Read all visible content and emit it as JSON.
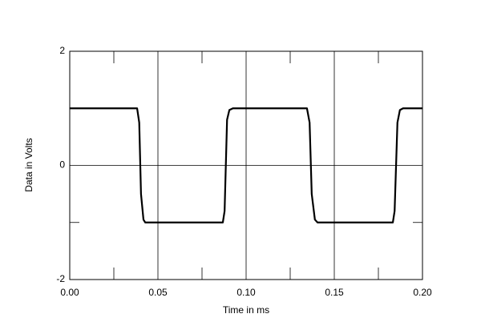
{
  "chart_data": {
    "type": "line",
    "x_label": "Time in ms",
    "y_label": "Data in Volts",
    "x": [
      0,
      0.0382,
      0.0394,
      0.0404,
      0.0418,
      0.0428,
      0.0868,
      0.0878,
      0.0892,
      0.0905,
      0.0925,
      0.1345,
      0.136,
      0.1372,
      0.139,
      0.1405,
      0.1832,
      0.1842,
      0.1858,
      0.1872,
      0.189,
      0.2
    ],
    "series": [
      {
        "color": "#000000",
        "values": [
          1,
          1,
          0.75,
          -0.5,
          -0.95,
          -1,
          -1,
          -0.8,
          0.8,
          0.97,
          1,
          1,
          0.75,
          -0.5,
          -0.95,
          -1,
          -1,
          -0.8,
          0.75,
          0.97,
          1,
          1
        ]
      }
    ],
    "xlim": [
      0,
      0.2
    ],
    "ylim": [
      -2,
      2
    ],
    "xticks": [
      {
        "value": 0,
        "label": "0.00"
      },
      {
        "value": 0.05,
        "label": "0.05"
      },
      {
        "value": 0.1,
        "label": "0.10"
      },
      {
        "value": 0.15,
        "label": "0.15"
      },
      {
        "value": 0.2,
        "label": "0.20"
      }
    ],
    "yticks": [
      -2,
      0,
      2
    ],
    "xminor": [
      0.025,
      0.075,
      0.125,
      0.175
    ],
    "yminor": [
      -1,
      1
    ],
    "grid": true
  }
}
